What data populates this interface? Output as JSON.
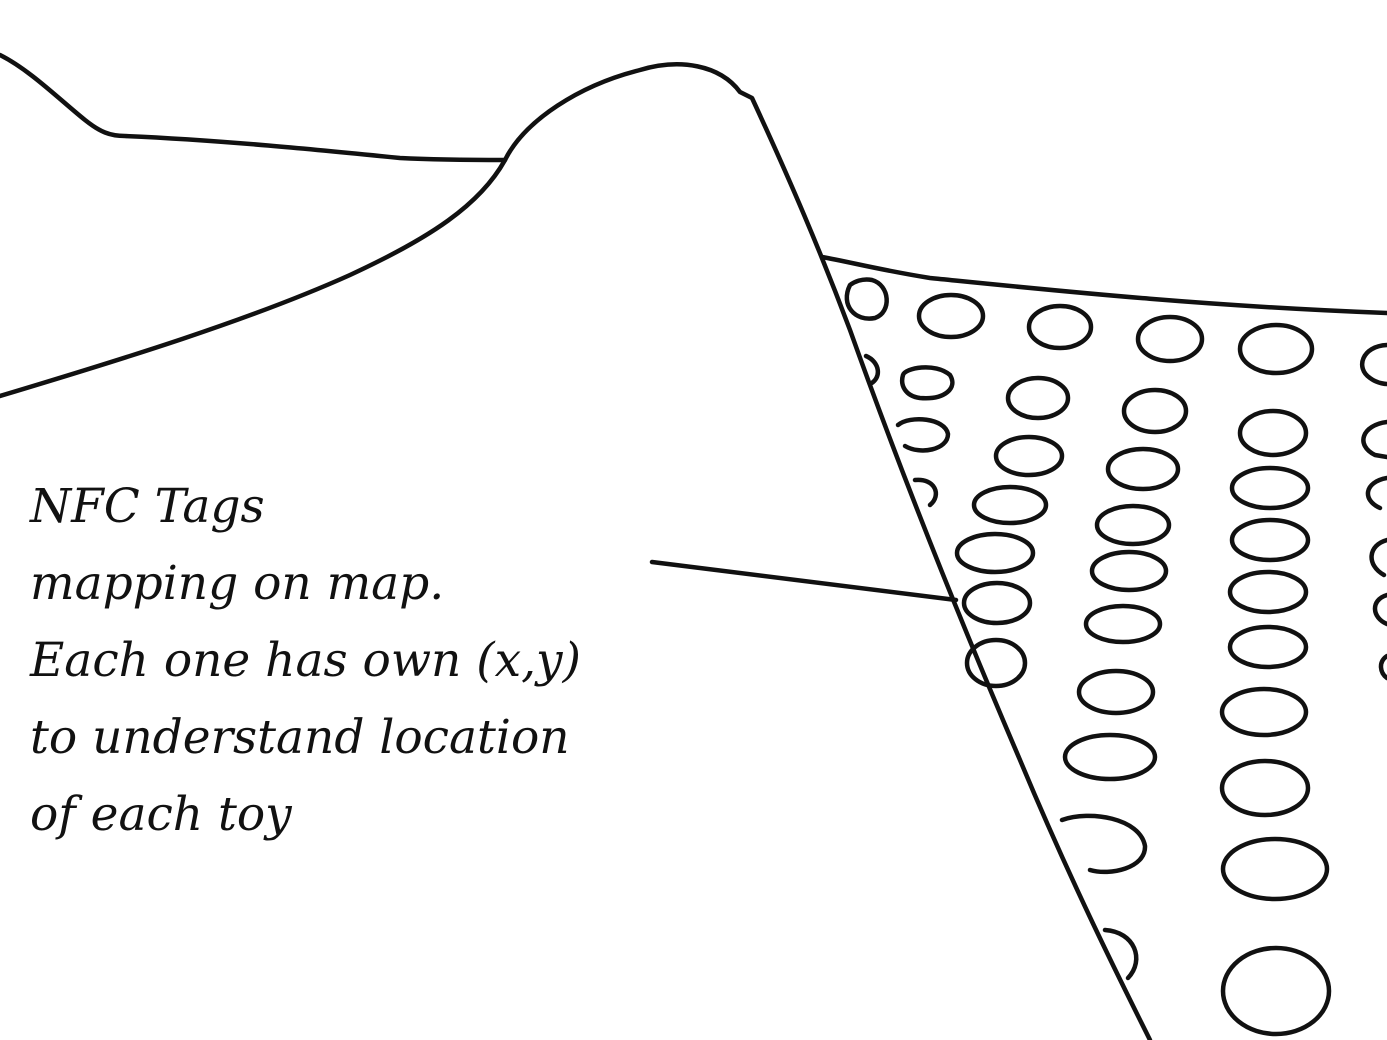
{
  "annotation": {
    "lines": [
      "NFC Tags",
      "mapping on map.",
      "Each one has own (x,y)",
      "to understand location",
      "of each toy"
    ]
  },
  "colors": {
    "ink": "#111111",
    "paper": "#ffffff"
  }
}
